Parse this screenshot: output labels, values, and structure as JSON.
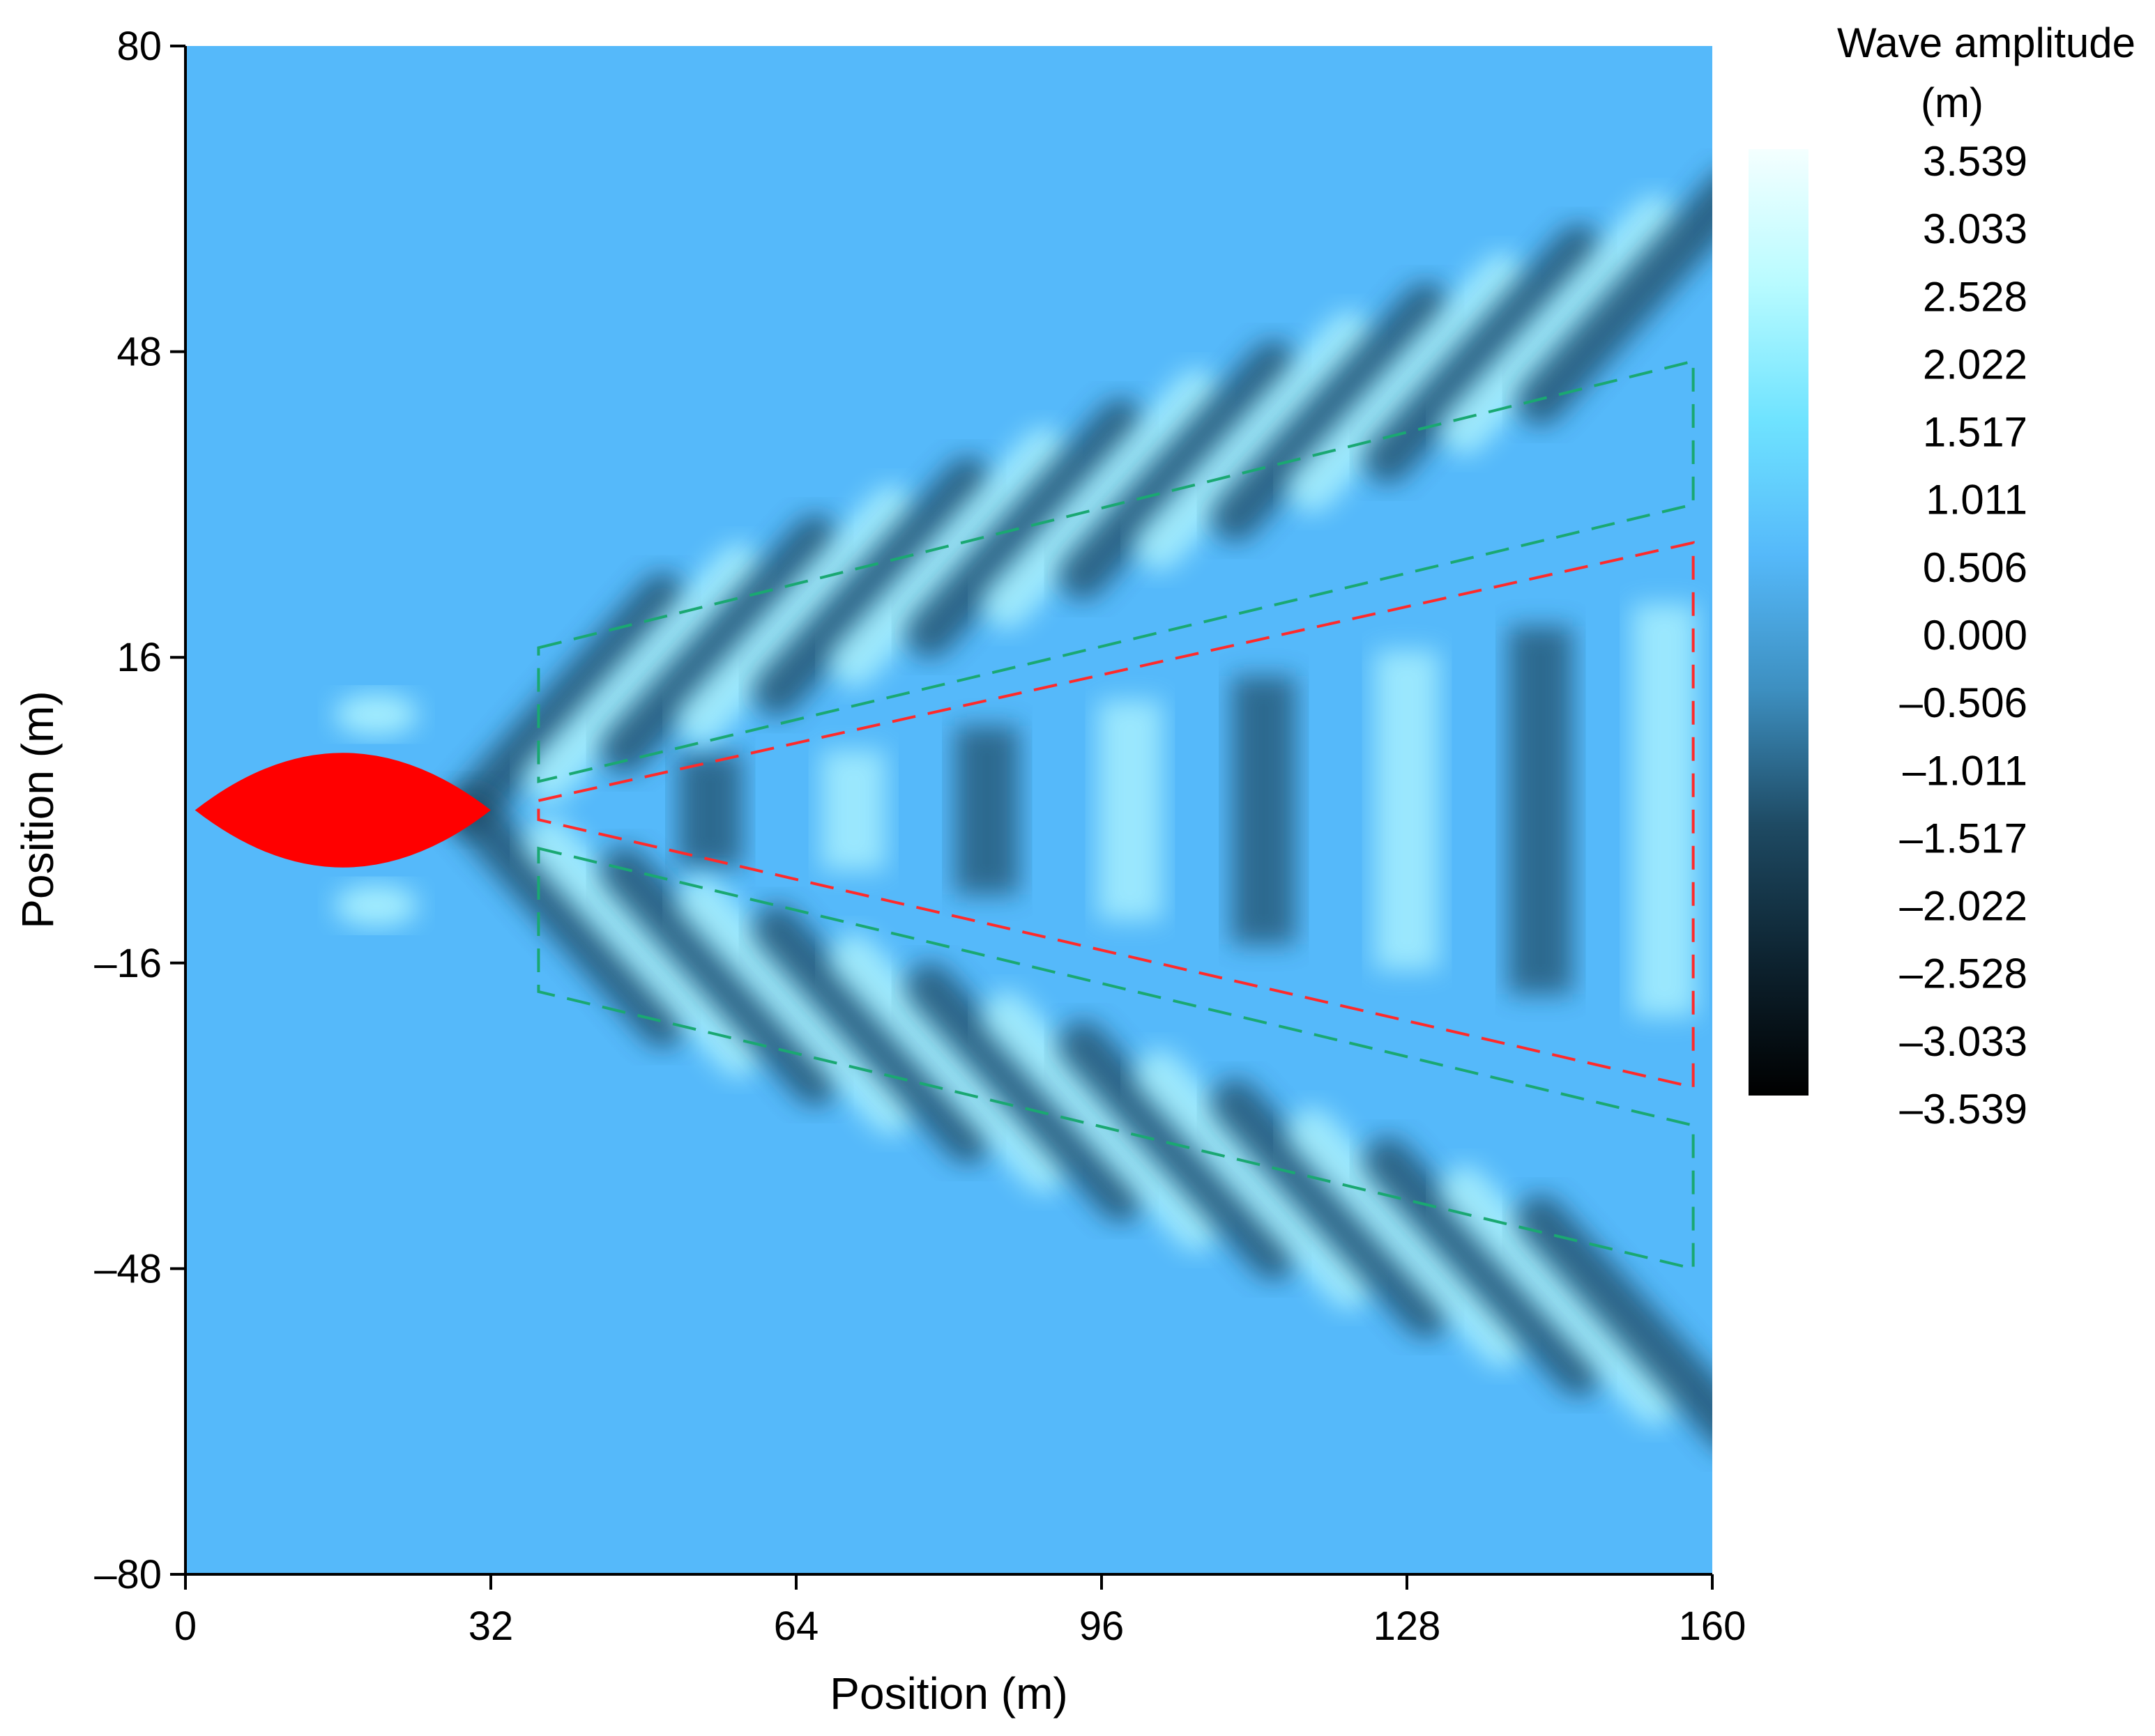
{
  "chart_data": {
    "type": "heatmap",
    "title": "",
    "xlabel": "Position (m)",
    "ylabel": "Position (m)",
    "xlim": [
      0,
      160
    ],
    "ylim": [
      -80,
      80
    ],
    "x_ticks": [
      "0",
      "32",
      "64",
      "96",
      "128",
      "160"
    ],
    "y_ticks": [
      "80",
      "48",
      "16",
      "–16",
      "–48",
      "–80"
    ],
    "x_tick_values": [
      0,
      32,
      64,
      96,
      128,
      160
    ],
    "y_tick_values": [
      80,
      48,
      16,
      -16,
      -48,
      -80
    ],
    "colorbar": {
      "title_line1": "Wave amplitude",
      "title_line2": "(m)",
      "labels": [
        "3.539",
        "3.033",
        "2.528",
        "2.022",
        "1.517",
        "1.011",
        "0.506",
        "0.000",
        "–0.506",
        "–1.011",
        "–1.517",
        "–2.022",
        "–2.528",
        "–3.033",
        "–3.539"
      ],
      "min": -3.539,
      "max": 3.539,
      "colors": [
        "#000000",
        "#0d2330",
        "#1e4a63",
        "#3d8fc0",
        "#55b9fa",
        "#6fe3ff",
        "#b8fbff",
        "#f4ffff"
      ]
    },
    "background_color": "#55b9fa",
    "vessel": {
      "color": "#ff0000",
      "x_start": 1,
      "x_end": 32,
      "half_width": 6
    },
    "regions": [
      {
        "name": "",
        "color": "#1aa872",
        "points": [
          [
            37,
            17
          ],
          [
            158,
            47
          ],
          [
            158,
            32
          ],
          [
            37,
            3
          ]
        ]
      },
      {
        "name": "",
        "color": "#1aa872",
        "points": [
          [
            37,
            -4
          ],
          [
            158,
            -33
          ],
          [
            158,
            -48
          ],
          [
            37,
            -19
          ]
        ]
      },
      {
        "name": "",
        "color": "#ff2a2a",
        "points": [
          [
            37,
            1
          ],
          [
            158,
            28
          ],
          [
            158,
            -29
          ],
          [
            37,
            -1
          ]
        ]
      }
    ]
  }
}
